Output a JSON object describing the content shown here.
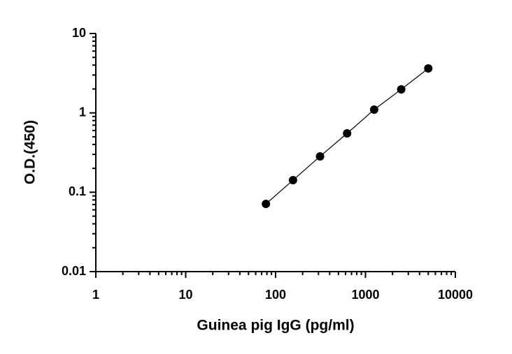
{
  "chart_data": {
    "type": "scatter",
    "xlabel": "Guinea pig IgG (pg/ml)",
    "ylabel": "O.D.(450)",
    "x": [
      78.125,
      156.25,
      312.5,
      625,
      1250,
      2500,
      5000
    ],
    "values": [
      0.0714,
      0.142,
      0.283,
      0.552,
      1.1,
      1.98,
      3.63
    ],
    "color": "#000000",
    "xlim": [
      1,
      10000
    ],
    "ylim": [
      0.01,
      10
    ],
    "xticks": [
      1,
      10,
      100,
      1000,
      10000
    ],
    "yticks": [
      0.01,
      0.1,
      1,
      10
    ],
    "xscale": "log",
    "yscale": "log",
    "grid": false,
    "line": true
  }
}
